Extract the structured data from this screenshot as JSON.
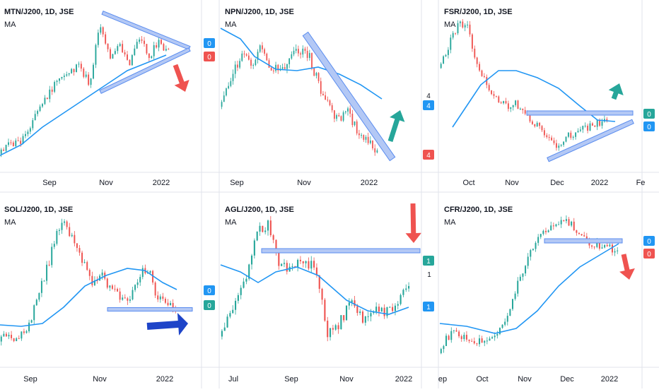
{
  "colors": {
    "up": "#26a69a",
    "down": "#ef5350",
    "ma": "#2196f3",
    "trendline": "#5b8def",
    "trendline_fill": "#b3c8f5",
    "arrow_up": "#26a69a",
    "arrow_down": "#ef5350",
    "arrow_right": "#1e44c8",
    "badge_blue": "#2196f3",
    "badge_red": "#ef5350",
    "badge_green": "#26a69a",
    "axis_text": "#131722",
    "separator": "#e0e3eb"
  },
  "chart_data": [
    {
      "type": "candlestick",
      "title": "MTN/J200, 1D, JSE",
      "indicator": "MA",
      "x_ticks": [
        "Sep",
        "Nov",
        "2022"
      ],
      "price_badges": [
        {
          "value": "0",
          "color": "blue"
        },
        {
          "value": "0",
          "color": "red"
        }
      ],
      "annotations": [
        "symmetrical-triangle",
        "arrow-down"
      ]
    },
    {
      "type": "candlestick",
      "title": "NPN/J200, 1D, JSE",
      "indicator": "MA",
      "x_ticks": [
        "Sep",
        "Nov",
        "2022"
      ],
      "price_badges": [
        {
          "value": "4",
          "color": "blue",
          "label": "4"
        },
        {
          "value": "4",
          "color": "red"
        }
      ],
      "annotations": [
        "descending-channel-line",
        "arrow-up"
      ]
    },
    {
      "type": "candlestick",
      "title": "FSR/J200, 1D, JSE",
      "indicator": "MA",
      "x_ticks": [
        "Oct",
        "Nov",
        "Dec",
        "2022",
        "Fe"
      ],
      "price_badges": [
        {
          "value": "0",
          "color": "green"
        },
        {
          "value": "0",
          "color": "blue"
        }
      ],
      "annotations": [
        "horizontal-resistance",
        "ascending-support",
        "arrow-up"
      ]
    },
    {
      "type": "candlestick",
      "title": "SOL/J200, 1D, JSE",
      "indicator": "MA",
      "x_ticks": [
        "Sep",
        "Nov",
        "2022"
      ],
      "price_badges": [
        {
          "value": "0",
          "color": "blue"
        },
        {
          "value": "0",
          "color": "green"
        }
      ],
      "annotations": [
        "horizontal-support",
        "arrow-right"
      ]
    },
    {
      "type": "candlestick",
      "title": "AGL/J200, 1D, JSE",
      "indicator": "MA",
      "x_ticks": [
        "Jul",
        "Sep",
        "Nov",
        "2022"
      ],
      "price_badges": [
        {
          "value": "1",
          "color": "green",
          "label": "1"
        },
        {
          "value": "1",
          "color": "blue"
        }
      ],
      "annotations": [
        "horizontal-resistance",
        "arrow-down"
      ]
    },
    {
      "type": "candlestick",
      "title": "CFR/J200, 1D, JSE",
      "indicator": "MA",
      "x_ticks": [
        "ep",
        "Oct",
        "Nov",
        "Dec",
        "2022"
      ],
      "price_badges": [
        {
          "value": "0",
          "color": "blue"
        },
        {
          "value": "0",
          "color": "red"
        }
      ],
      "annotations": [
        "horizontal-support",
        "arrow-down"
      ]
    }
  ]
}
